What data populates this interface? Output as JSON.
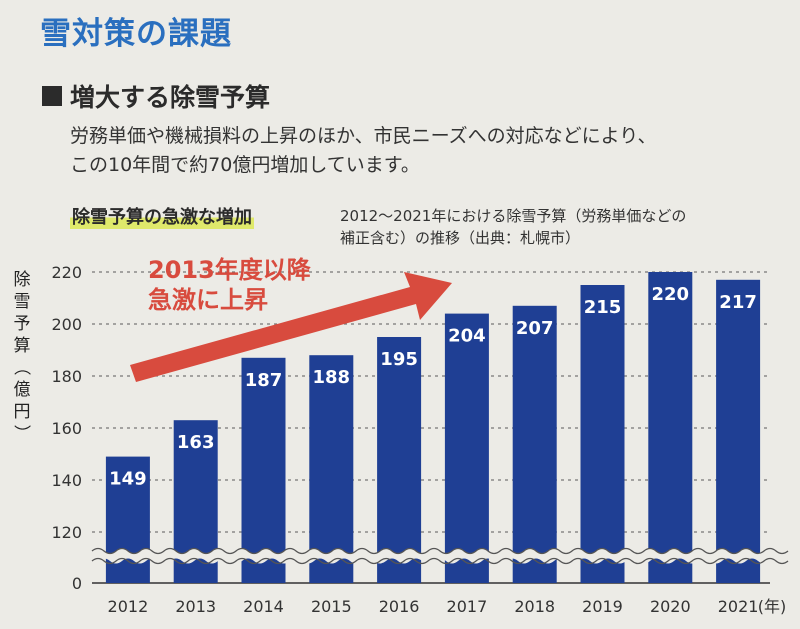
{
  "page": {
    "title": "雪対策の課題",
    "section_heading": "増大する除雪予算",
    "body_lines": [
      "労務単価や機械損料の上昇のほか、市民ニーズへの対応などにより、",
      "この10年間で約70億円増加しています。"
    ],
    "chart_highlight": "除雪予算の急激な増加",
    "chart_caption_lines": [
      "2012〜2021年における除雪予算（労務単価などの",
      "補正含む）の推移（出典：札幌市）"
    ]
  },
  "chart_data": {
    "type": "bar",
    "categories": [
      "2012",
      "2013",
      "2014",
      "2015",
      "2016",
      "2017",
      "2018",
      "2019",
      "2020",
      "2021"
    ],
    "values": [
      149,
      163,
      187,
      188,
      195,
      204,
      207,
      215,
      220,
      217
    ],
    "ylabel": "除雪予算（億円）",
    "x_unit": "(年)",
    "y_ticks": [
      0,
      120,
      140,
      160,
      180,
      200,
      220
    ],
    "ylim": [
      0,
      220
    ],
    "axis_break": true,
    "bar_color": "#1f3f94",
    "arrow_color": "#d84b3e",
    "annotation_lines": [
      "2013年度以降",
      "急激に上昇"
    ]
  }
}
